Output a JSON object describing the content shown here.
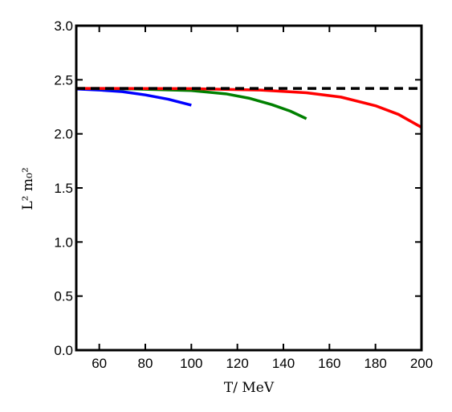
{
  "chart_data": {
    "type": "line",
    "xlabel": "T/ MeV",
    "ylabel": "L² m₀²",
    "xlim": [
      50,
      200
    ],
    "ylim": [
      0.0,
      3.0
    ],
    "x_ticks": [
      60,
      80,
      100,
      120,
      140,
      160,
      180,
      200
    ],
    "y_ticks": [
      0.0,
      0.5,
      1.0,
      1.5,
      2.0,
      2.5,
      3.0
    ],
    "x_tick_labels": [
      "60",
      "80",
      "100",
      "120",
      "140",
      "160",
      "180",
      "200"
    ],
    "y_tick_labels": [
      "0.0",
      "0.5",
      "1.0",
      "1.5",
      "2.0",
      "2.5",
      "3.0"
    ],
    "grid": false,
    "series": [
      {
        "color": "#0000ff",
        "style": "solid",
        "x": [
          50,
          60,
          70,
          80,
          90,
          100
        ],
        "y": [
          2.415,
          2.405,
          2.39,
          2.36,
          2.32,
          2.265
        ]
      },
      {
        "color": "#008000",
        "style": "solid",
        "x": [
          50,
          75,
          100,
          115,
          125,
          135,
          143,
          150
        ],
        "y": [
          2.42,
          2.415,
          2.4,
          2.37,
          2.33,
          2.27,
          2.21,
          2.14
        ]
      },
      {
        "color": "#ff0000",
        "style": "solid",
        "x": [
          50,
          100,
          130,
          150,
          165,
          180,
          190,
          200
        ],
        "y": [
          2.42,
          2.418,
          2.405,
          2.38,
          2.34,
          2.26,
          2.18,
          2.06
        ]
      },
      {
        "color": "#000000",
        "style": "dashed",
        "x": [
          50,
          200
        ],
        "y": [
          2.42,
          2.42
        ]
      }
    ]
  }
}
